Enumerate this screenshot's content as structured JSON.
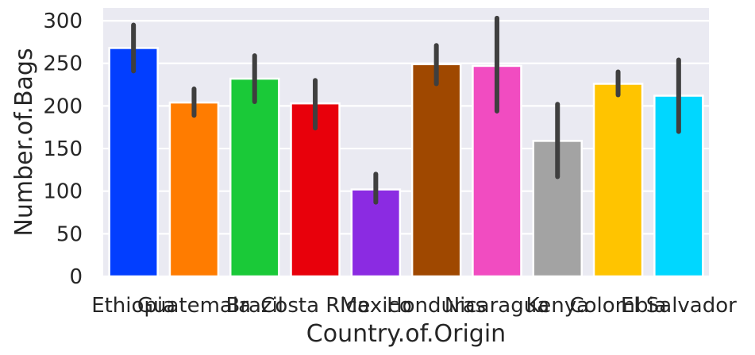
{
  "chart_data": {
    "type": "bar",
    "title": "",
    "xlabel": "Country.of.Origin",
    "ylabel": "Number.of.Bags",
    "ylim": [
      0,
      315
    ],
    "yticks": [
      0,
      50,
      100,
      150,
      200,
      250,
      300
    ],
    "grid": true,
    "categories": [
      "Ethiopia",
      "Guatemala",
      "Brazil",
      "Costa Rica",
      "Mexico",
      "Honduras",
      "Nicaragua",
      "Kenya",
      "Colombia",
      "El Salvador"
    ],
    "values": [
      268,
      204,
      232,
      203,
      102,
      249,
      247,
      159,
      226,
      212
    ],
    "error_low": [
      241,
      189,
      205,
      174,
      87,
      226,
      194,
      117,
      213,
      170
    ],
    "error_high": [
      295,
      220,
      259,
      230,
      120,
      271,
      303,
      202,
      240,
      254
    ],
    "colors": [
      "#023eff",
      "#ff7c00",
      "#1ac938",
      "#e8000b",
      "#8b2be2",
      "#9f4800",
      "#f14cc1",
      "#a3a3a3",
      "#ffc400",
      "#00d7ff"
    ],
    "background": "#eaeaf2",
    "errorbar_color": "#3f3f3f"
  }
}
